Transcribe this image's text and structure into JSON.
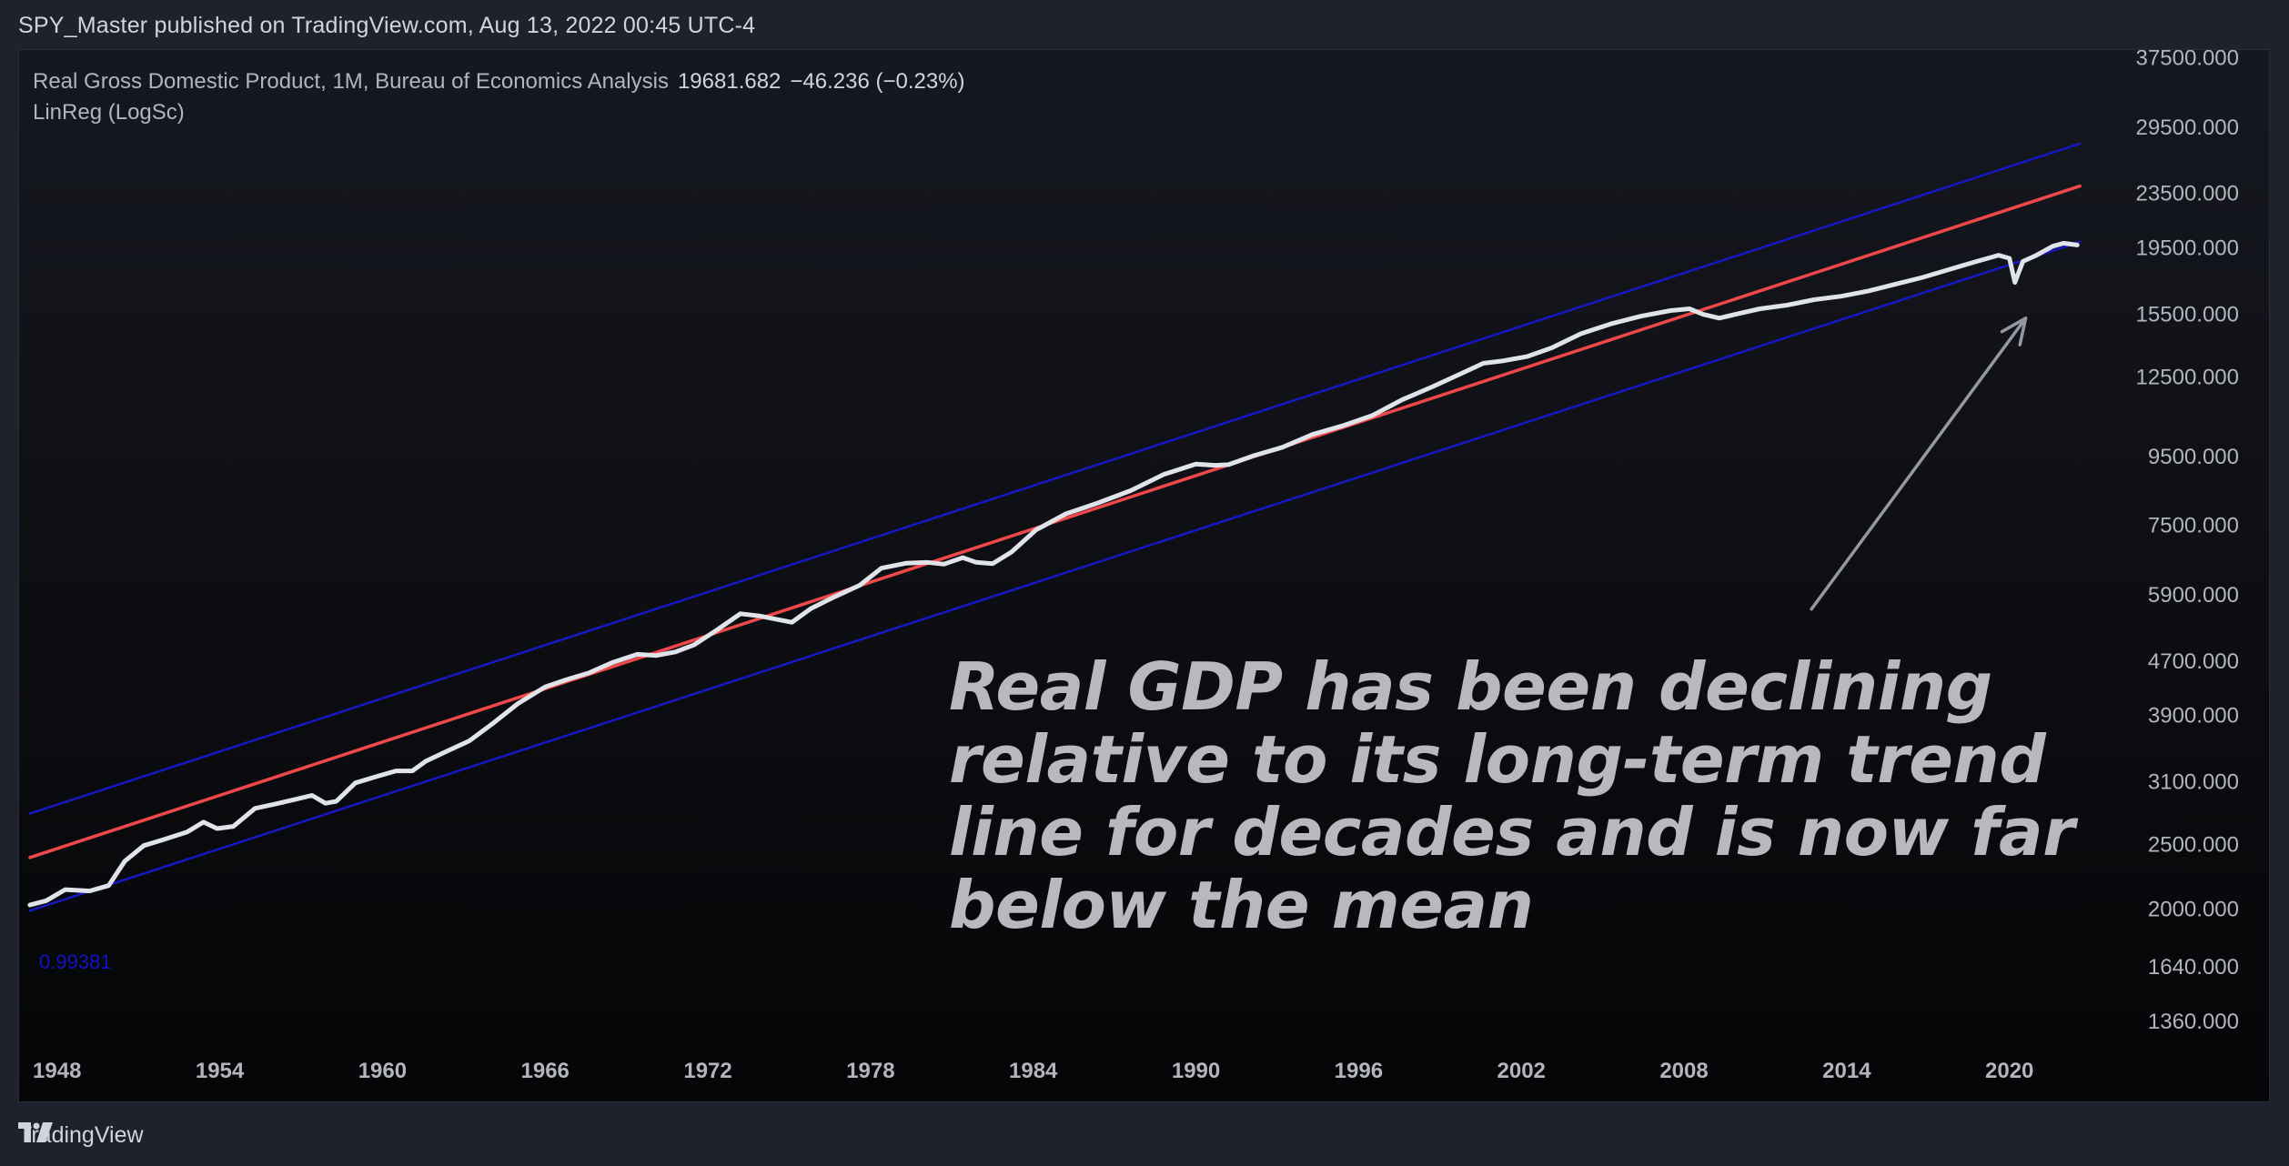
{
  "header": {
    "publisher": "SPY_Master published on TradingView.com, Aug 13, 2022 00:45 UTC-4"
  },
  "legend": {
    "series_title": "Real Gross Domestic Product, 1M, Bureau of Economics Analysis",
    "last_value": "19681.682",
    "change": "−46.236 (−0.23%)",
    "indicator": "LinReg (LogSc)"
  },
  "correlation_label": "0.99381",
  "annotation": {
    "text": "Real GDP has been declining relative to its long-term trend line for decades and is now far below the mean"
  },
  "footer": {
    "brand": "TradingView"
  },
  "colors": {
    "background": "#1e222d",
    "price_line": "#e1e3ea",
    "regression_line": "#f0484a",
    "channel_lines": "#1717c4",
    "axis_text": "#b2b5be",
    "arrow": "#9598a1"
  },
  "chart_data": {
    "type": "line",
    "title": "Real Gross Domestic Product, 1M, Bureau of Economics Analysis",
    "xlabel": "",
    "ylabel": "",
    "yscale": "log",
    "ylim": [
      1230,
      38500
    ],
    "xlim": [
      1946.6,
      2023.6
    ],
    "x_ticks": [
      1948,
      1954,
      1960,
      1966,
      1972,
      1978,
      1984,
      1990,
      1996,
      2002,
      2008,
      2014,
      2020
    ],
    "y_ticks": [
      37500,
      29500,
      23500,
      19500,
      15500,
      12500,
      9500,
      7500,
      5900,
      4700,
      3900,
      3100,
      2500,
      2000,
      1640,
      1360
    ],
    "y_tick_labels": [
      "37500.000",
      "29500.000",
      "23500.000",
      "19500.000",
      "15500.000",
      "12500.000",
      "9500.000",
      "7500.000",
      "5900.000",
      "4700.000",
      "3900.000",
      "3100.000",
      "2500.000",
      "2000.000",
      "1640.000",
      "1360.000"
    ],
    "series": [
      {
        "name": "Real GDP",
        "x": [
          1947.0,
          1947.6,
          1948.3,
          1949.2,
          1949.9,
          1950.5,
          1951.2,
          1951.9,
          1952.8,
          1953.4,
          1953.9,
          1954.5,
          1955.3,
          1956.0,
          1956.8,
          1957.4,
          1957.9,
          1958.3,
          1959.0,
          1959.8,
          1960.5,
          1961.1,
          1961.6,
          1962.4,
          1963.2,
          1964.1,
          1965.0,
          1966.0,
          1966.8,
          1967.6,
          1968.5,
          1969.4,
          1970.1,
          1970.8,
          1971.5,
          1972.3,
          1973.2,
          1973.9,
          1974.6,
          1975.1,
          1975.8,
          1976.7,
          1977.6,
          1978.4,
          1979.3,
          1980.1,
          1980.7,
          1981.4,
          1981.9,
          1982.5,
          1983.2,
          1984.1,
          1985.2,
          1986.4,
          1987.6,
          1988.8,
          1990.0,
          1990.7,
          1991.2,
          1992.1,
          1993.2,
          1994.3,
          1995.4,
          1996.5,
          1997.6,
          1998.7,
          1999.8,
          2000.6,
          2001.3,
          2002.2,
          2003.1,
          2004.2,
          2005.3,
          2006.4,
          2007.5,
          2008.2,
          2008.7,
          2009.3,
          2009.9,
          2010.8,
          2011.8,
          2012.8,
          2013.8,
          2014.8,
          2015.8,
          2016.8,
          2017.8,
          2018.8,
          2019.6,
          2020.0,
          2020.2,
          2020.5,
          2021.0,
          2021.6,
          2022.0,
          2022.5
        ],
        "values": [
          2030,
          2060,
          2140,
          2130,
          2170,
          2360,
          2490,
          2540,
          2610,
          2700,
          2640,
          2660,
          2830,
          2870,
          2920,
          2960,
          2880,
          2900,
          3090,
          3160,
          3220,
          3220,
          3330,
          3450,
          3570,
          3800,
          4060,
          4300,
          4410,
          4510,
          4680,
          4810,
          4790,
          4850,
          4970,
          5220,
          5530,
          5490,
          5420,
          5370,
          5630,
          5870,
          6100,
          6470,
          6580,
          6600,
          6560,
          6710,
          6600,
          6570,
          6840,
          7380,
          7800,
          8100,
          8450,
          8930,
          9260,
          9220,
          9240,
          9520,
          9810,
          10250,
          10560,
          10940,
          11550,
          12070,
          12650,
          13100,
          13200,
          13400,
          13800,
          14500,
          15000,
          15400,
          15700,
          15800,
          15500,
          15300,
          15500,
          15800,
          16000,
          16300,
          16500,
          16800,
          17200,
          17600,
          18100,
          18600,
          19000,
          18800,
          17300,
          18600,
          19000,
          19600,
          19800,
          19680
        ]
      },
      {
        "name": "LinReg mean",
        "x": [
          1947.0,
          2022.6
        ],
        "values": [
          2390,
          24100
        ]
      },
      {
        "name": "LinReg upper",
        "x": [
          1947.0,
          2022.6
        ],
        "values": [
          2780,
          27900
        ]
      },
      {
        "name": "LinReg lower",
        "x": [
          1947.0,
          2022.6
        ],
        "values": [
          1990,
          19900
        ]
      }
    ],
    "annotations": [
      {
        "type": "arrow",
        "from": [
          2012.7,
          5620
        ],
        "to": [
          2020.6,
          15300
        ]
      }
    ],
    "correlation": 0.99381,
    "grid": false,
    "legend": "top-left"
  }
}
